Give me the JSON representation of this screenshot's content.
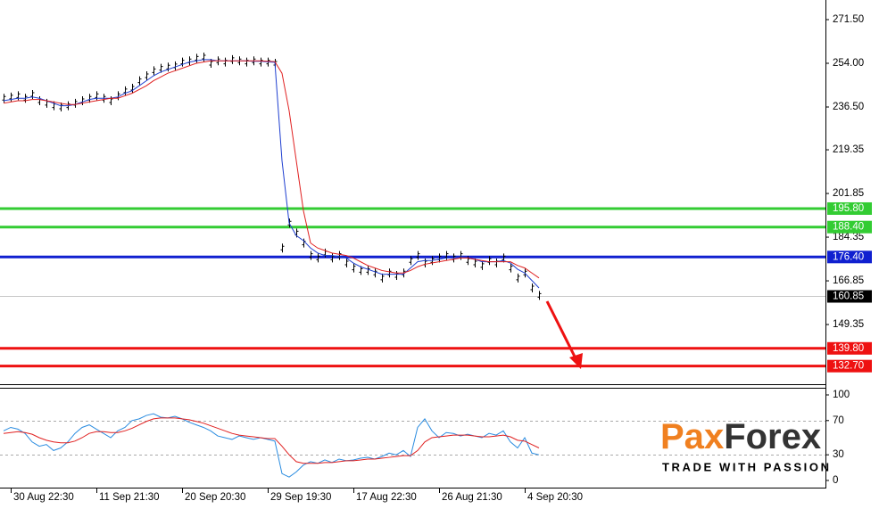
{
  "chart_data": [
    {
      "type": "line",
      "categories": [
        null,
        "30 Aug 22:30",
        null,
        null,
        null,
        null,
        null,
        null,
        null,
        null,
        null,
        null,
        null,
        "11 Sep 21:30",
        null,
        null,
        null,
        null,
        null,
        null,
        null,
        null,
        null,
        null,
        null,
        "20 Sep 20:30",
        null,
        null,
        null,
        null,
        null,
        null,
        null,
        null,
        null,
        null,
        null,
        "29 Sep 19:30",
        null,
        null,
        null,
        null,
        null,
        null,
        null,
        null,
        null,
        null,
        null,
        "17 Aug 22:30",
        null,
        null,
        null,
        null,
        null,
        null,
        null,
        null,
        null,
        null,
        null,
        "26 Aug 21:30",
        null,
        null,
        null,
        null,
        null,
        null,
        null,
        null,
        null,
        null,
        null,
        "4 Sep 20:30",
        null,
        null
      ],
      "series": [
        {
          "style": "bars",
          "color": "#000000",
          "values": [
            240,
            240.5,
            241,
            240,
            241.5,
            239,
            238,
            237,
            236.5,
            237,
            238,
            239,
            240,
            241,
            240,
            239,
            241,
            243,
            244,
            247,
            249,
            251,
            252,
            252.5,
            253,
            254.5,
            255,
            256,
            256.5,
            254,
            255,
            254.5,
            255.5,
            255,
            254.5,
            255,
            254.5,
            254.5,
            254,
            180,
            190,
            186,
            182,
            177,
            176,
            178,
            176,
            177,
            174,
            172,
            171,
            171,
            170,
            168,
            170,
            169,
            170,
            175,
            177,
            174,
            175,
            176,
            177,
            176,
            177,
            175,
            174,
            173,
            175,
            174,
            176,
            172,
            168,
            170,
            164,
            161
          ]
        },
        {
          "color": "#1f3fd0",
          "values": [
            239,
            239.5,
            240,
            240,
            240.5,
            240,
            239,
            238,
            237,
            237,
            237.5,
            238.5,
            239.5,
            240,
            240,
            240,
            240.5,
            242,
            243,
            245,
            247,
            249,
            250.5,
            251.5,
            252.5,
            253.5,
            254.5,
            255,
            255.5,
            255.5,
            255,
            255,
            255,
            255,
            255,
            254.8,
            254.8,
            254.6,
            254.4,
            215,
            190,
            185,
            183,
            180,
            178,
            177,
            177,
            176.5,
            176,
            174,
            172.5,
            171.5,
            170.5,
            169.5,
            169.5,
            169.5,
            169.5,
            172,
            174.5,
            175,
            175,
            175.5,
            176,
            176,
            176.5,
            176,
            175.5,
            174.5,
            174.5,
            174.5,
            175,
            174,
            171.5,
            170,
            167,
            164
          ]
        },
        {
          "color": "#e02020",
          "values": [
            238,
            238.5,
            239,
            239,
            239.5,
            239.5,
            239,
            238.5,
            238,
            237.5,
            237.5,
            238,
            238.5,
            239,
            239.5,
            240,
            240,
            241,
            242,
            243.5,
            245,
            247,
            248.5,
            250,
            251,
            252,
            253,
            254,
            254.5,
            255,
            255,
            255,
            255,
            255,
            255,
            255,
            255,
            254.8,
            254.7,
            250,
            235,
            215,
            195,
            182,
            180,
            179,
            178,
            177.5,
            177,
            176,
            174.5,
            173,
            172,
            171,
            170.5,
            170,
            170,
            171,
            172.5,
            173.5,
            174,
            174.5,
            175,
            175.5,
            176,
            176,
            175.5,
            175,
            174.5,
            174.5,
            174.5,
            174.5,
            173,
            172,
            170,
            168
          ]
        }
      ],
      "ylim": [
        125.8,
        279.36
      ],
      "yticks": [
        {
          "value": 271.5,
          "label": "271.50"
        },
        {
          "value": 254,
          "label": "254.00"
        },
        {
          "value": 236.5,
          "label": "236.50"
        },
        219.35,
        201.85,
        184.35,
        166.85,
        149.35
      ],
      "levels": [
        {
          "value": 195.8,
          "label": "195.80",
          "color": "#33cc33"
        },
        {
          "value": 188.4,
          "label": "188.40",
          "color": "#33cc33"
        },
        {
          "value": 176.4,
          "label": "176.40",
          "color": "#1020d0"
        },
        {
          "value": 139.8,
          "label": "139.80",
          "color": "#ee1111"
        },
        {
          "value": 132.7,
          "label": "132.70",
          "color": "#ee1111"
        }
      ],
      "current": {
        "value": 160.85,
        "color": "#000000"
      }
    },
    {
      "type": "line",
      "series": [
        {
          "color": "#2a8ce0",
          "values": [
            58,
            62,
            60,
            55,
            45,
            40,
            42,
            35,
            38,
            45,
            55,
            62,
            65,
            60,
            55,
            50,
            58,
            62,
            70,
            72,
            76,
            78,
            74,
            73,
            75,
            72,
            68,
            65,
            62,
            58,
            52,
            50,
            48,
            52,
            50,
            48,
            50,
            48,
            46,
            8,
            4,
            10,
            18,
            22,
            20,
            24,
            21,
            25,
            23,
            24,
            26,
            27,
            25,
            28,
            32,
            30,
            35,
            28,
            62,
            72,
            58,
            50,
            56,
            55,
            52,
            54,
            52,
            50,
            55,
            53,
            58,
            45,
            38,
            50,
            32,
            30
          ]
        },
        {
          "color": "#e02020",
          "values": [
            55,
            56,
            57,
            56,
            54,
            50,
            47,
            45,
            44,
            44,
            46,
            50,
            55,
            57,
            57,
            56,
            56,
            58,
            61,
            65,
            69,
            72,
            73,
            73,
            73,
            72,
            71,
            69,
            67,
            64,
            61,
            58,
            55,
            53,
            52,
            51,
            50,
            49,
            49,
            40,
            30,
            22,
            20,
            20,
            20,
            21,
            21,
            22,
            23,
            23,
            24,
            25,
            25,
            26,
            27,
            28,
            29,
            29,
            35,
            45,
            50,
            51,
            52,
            53,
            53,
            53,
            52,
            51,
            51,
            52,
            53,
            51,
            47,
            46,
            42,
            38
          ]
        }
      ],
      "ylim": [
        -9.4,
        107.3
      ],
      "yticks": [
        100,
        70,
        30,
        0
      ],
      "grid": [
        70,
        30
      ]
    }
  ],
  "logo": {
    "parts": [
      "Pa",
      "x",
      "Forex"
    ],
    "tagline": "TRADE WITH PASSION"
  }
}
